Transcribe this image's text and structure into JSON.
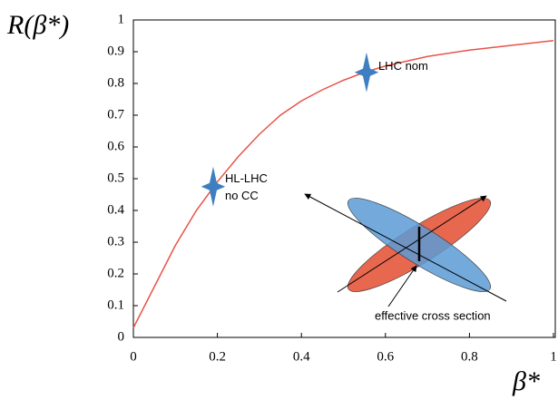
{
  "chart_data": {
    "type": "line",
    "ylabel": "R(β*)",
    "xlabel": "β*",
    "xlim": [
      0,
      1
    ],
    "ylim": [
      0,
      1
    ],
    "xticks": [
      0,
      0.2,
      0.4,
      0.6,
      0.8,
      1
    ],
    "yticks": [
      0,
      0.1,
      0.2,
      0.3,
      0.4,
      0.5,
      0.6,
      0.7,
      0.8,
      0.9,
      1
    ],
    "x": [
      0,
      0.05,
      0.1,
      0.15,
      0.2,
      0.25,
      0.3,
      0.35,
      0.4,
      0.45,
      0.5,
      0.55,
      0.6,
      0.7,
      0.8,
      0.9,
      1.0
    ],
    "series": [
      {
        "color": "#e8534a",
        "values": [
          0.03,
          0.16,
          0.29,
          0.4,
          0.49,
          0.57,
          0.64,
          0.7,
          0.745,
          0.78,
          0.81,
          0.835,
          0.855,
          0.885,
          0.905,
          0.92,
          0.935
        ]
      }
    ],
    "points": [
      {
        "x": 0.19,
        "y": 0.475,
        "label_lines": [
          "HL-LHC",
          "no CC"
        ],
        "color": "#3d7fc1"
      },
      {
        "x": 0.555,
        "y": 0.835,
        "label_lines": [
          "LHC nom"
        ],
        "color": "#3d7fc1"
      }
    ],
    "inset_label": "effective cross section"
  }
}
